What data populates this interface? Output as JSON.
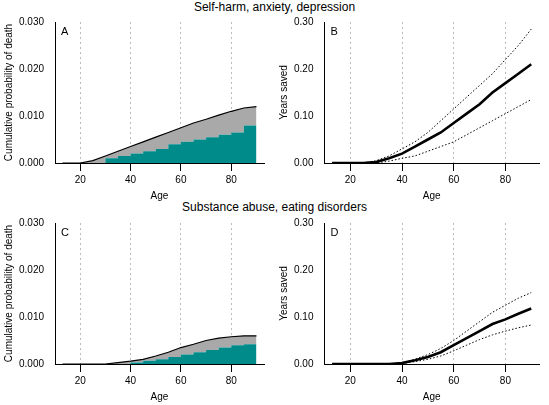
{
  "section_titles": [
    "Self-harm, anxiety, depression",
    "Substance abuse, eating disorders"
  ],
  "chart_data": [
    {
      "type": "area",
      "annotation": "A",
      "x_label": "Age",
      "y_label": "Cumulative probability of death",
      "x": [
        13,
        20,
        25,
        30,
        35,
        40,
        45,
        50,
        55,
        60,
        65,
        70,
        75,
        80,
        85,
        90
      ],
      "stacked": true,
      "grid": "x",
      "series": [
        {
          "color": "#008b8b",
          "line_style": "step",
          "values": [
            0,
            0,
            0,
            0,
            0.001,
            0.0015,
            0.002,
            0.0025,
            0.003,
            0.004,
            0.0045,
            0.005,
            0.0055,
            0.006,
            0.0065,
            0.008
          ]
        },
        {
          "color": "#a9a9a9",
          "line_style": "solid",
          "values": [
            0,
            0,
            0.0005,
            0.0015,
            0.0015,
            0.002,
            0.0025,
            0.003,
            0.0035,
            0.0035,
            0.004,
            0.0043,
            0.0047,
            0.005,
            0.0052,
            0.004
          ]
        }
      ],
      "xlim": [
        10,
        93
      ],
      "xticks": [
        20,
        40,
        60,
        80
      ],
      "ylim": [
        0,
        0.03
      ],
      "yticks": [
        {
          "value": 0,
          "label": "0.000"
        },
        {
          "value": 0.01,
          "label": "0.010"
        },
        {
          "value": 0.02,
          "label": "0.020"
        },
        {
          "value": 0.03,
          "label": "0.030"
        }
      ]
    },
    {
      "type": "line",
      "annotation": "B",
      "x_label": "Age",
      "y_label": "Years saved",
      "x": [
        13,
        20,
        25,
        30,
        35,
        40,
        45,
        50,
        55,
        60,
        65,
        70,
        75,
        80,
        85,
        90
      ],
      "grid": "x",
      "series": [
        {
          "color": "#000000",
          "line_style": "solid",
          "values": [
            0,
            0,
            0,
            0.002,
            0.01,
            0.02,
            0.035,
            0.05,
            0.065,
            0.085,
            0.105,
            0.125,
            0.15,
            0.17,
            0.19,
            0.21
          ]
        },
        {
          "color": "#000000",
          "line_style": "dotted",
          "values": [
            0,
            0,
            0,
            0.005,
            0.015,
            0.03,
            0.045,
            0.065,
            0.09,
            0.115,
            0.14,
            0.165,
            0.19,
            0.22,
            0.25,
            0.285
          ]
        },
        {
          "color": "#000000",
          "line_style": "dotted",
          "values": [
            0,
            0,
            0,
            0,
            0.004,
            0.01,
            0.015,
            0.025,
            0.035,
            0.045,
            0.06,
            0.075,
            0.09,
            0.105,
            0.12,
            0.135
          ]
        }
      ],
      "xlim": [
        10,
        93
      ],
      "xticks": [
        20,
        40,
        60,
        80
      ],
      "ylim": [
        0,
        0.3
      ],
      "yticks": [
        {
          "value": 0,
          "label": "0.00"
        },
        {
          "value": 0.1,
          "label": "0.10"
        },
        {
          "value": 0.2,
          "label": "0.20"
        },
        {
          "value": 0.3,
          "label": "0.30"
        }
      ]
    },
    {
      "type": "area",
      "annotation": "C",
      "x_label": "Age",
      "y_label": "Cumulative probability of death",
      "x": [
        13,
        20,
        25,
        30,
        35,
        40,
        45,
        50,
        55,
        60,
        65,
        70,
        75,
        80,
        85,
        90
      ],
      "stacked": true,
      "grid": "x",
      "series": [
        {
          "color": "#008b8b",
          "line_style": "step",
          "values": [
            0,
            0,
            0,
            0,
            0,
            0,
            0.0003,
            0.0007,
            0.001,
            0.0015,
            0.002,
            0.0025,
            0.003,
            0.0035,
            0.004,
            0.0042
          ]
        },
        {
          "color": "#a9a9a9",
          "line_style": "solid",
          "values": [
            0,
            0,
            0,
            0,
            0.0003,
            0.0006,
            0.0007,
            0.001,
            0.0015,
            0.002,
            0.0022,
            0.0025,
            0.0025,
            0.0023,
            0.002,
            0.0018
          ]
        }
      ],
      "xlim": [
        10,
        93
      ],
      "xticks": [
        20,
        40,
        60,
        80
      ],
      "ylim": [
        0,
        0.03
      ],
      "yticks": [
        {
          "value": 0,
          "label": "0.000"
        },
        {
          "value": 0.01,
          "label": "0.010"
        },
        {
          "value": 0.02,
          "label": "0.020"
        },
        {
          "value": 0.03,
          "label": "0.030"
        }
      ]
    },
    {
      "type": "line",
      "annotation": "D",
      "x_label": "Age",
      "y_label": "Years saved",
      "x": [
        13,
        20,
        25,
        30,
        35,
        40,
        45,
        50,
        55,
        60,
        65,
        70,
        75,
        80,
        85,
        90
      ],
      "grid": "x",
      "series": [
        {
          "color": "#000000",
          "line_style": "solid",
          "values": [
            0,
            0,
            0,
            0,
            0,
            0.002,
            0.008,
            0.015,
            0.025,
            0.04,
            0.055,
            0.07,
            0.085,
            0.095,
            0.107,
            0.118
          ]
        },
        {
          "color": "#000000",
          "line_style": "dotted",
          "values": [
            0,
            0,
            0,
            0,
            0,
            0.003,
            0.01,
            0.02,
            0.033,
            0.05,
            0.07,
            0.09,
            0.11,
            0.125,
            0.14,
            0.152
          ]
        },
        {
          "color": "#000000",
          "line_style": "dotted",
          "values": [
            0,
            0,
            0,
            0,
            0,
            0.001,
            0.005,
            0.01,
            0.017,
            0.028,
            0.04,
            0.052,
            0.062,
            0.07,
            0.077,
            0.083
          ]
        }
      ],
      "xlim": [
        10,
        93
      ],
      "xticks": [
        20,
        40,
        60,
        80
      ],
      "ylim": [
        0,
        0.3
      ],
      "yticks": [
        {
          "value": 0,
          "label": "0.00"
        },
        {
          "value": 0.1,
          "label": "0.10"
        },
        {
          "value": 0.2,
          "label": "0.20"
        },
        {
          "value": 0.3,
          "label": "0.30"
        }
      ]
    }
  ]
}
